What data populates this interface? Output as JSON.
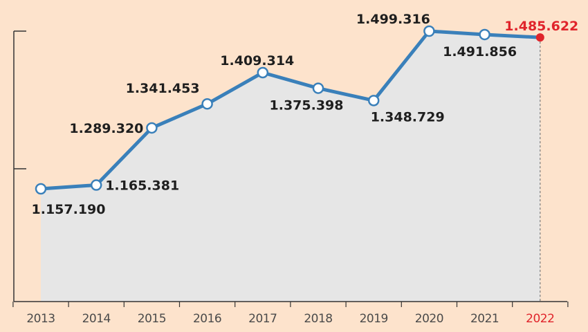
{
  "chart_data": {
    "type": "line",
    "title": "",
    "xlabel": "",
    "ylabel": "",
    "x": [
      "2013",
      "2014",
      "2015",
      "2016",
      "2017",
      "2018",
      "2019",
      "2020",
      "2021",
      "2022"
    ],
    "y_labels": [
      "1.157.190",
      "1.165.381",
      "1.289.320",
      "1.341.453",
      "1.409.314",
      "1.375.398",
      "1.348.729",
      "1.499.316",
      "1.491.856",
      "1.485.622"
    ],
    "series": [
      {
        "values": [
          1157190,
          1165381,
          1289320,
          1341453,
          1409314,
          1375398,
          1348729,
          1499316,
          1491856,
          1485622
        ]
      }
    ],
    "highlight": {
      "category": "2022",
      "color": "#e0242b"
    },
    "colors": {
      "line": "#3a80ba",
      "area": "#e6e6e6",
      "background": "#fde3cc",
      "axis": "#333333"
    },
    "grid": false,
    "legend": "none"
  }
}
